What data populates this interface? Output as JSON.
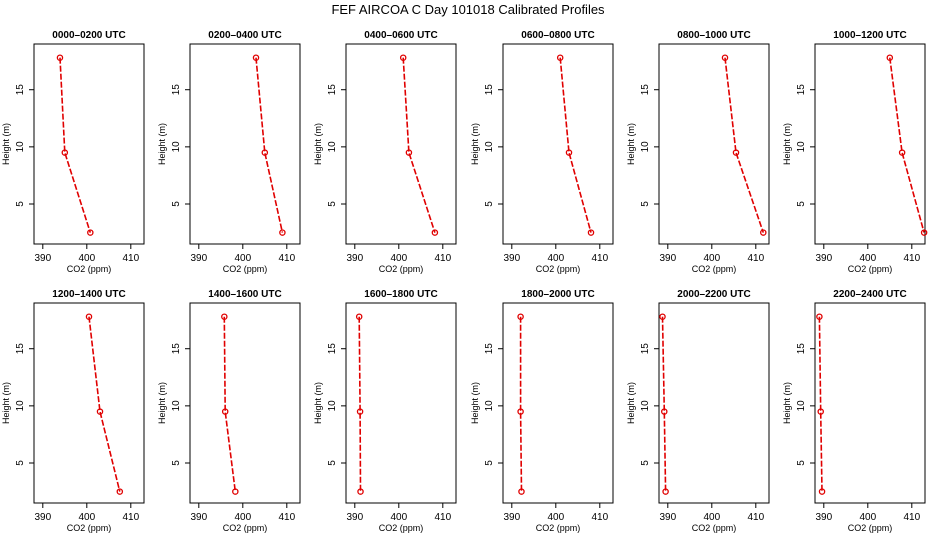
{
  "chart_data": {
    "type": "line",
    "title": "FEF AIRCOA C  Day 101018  Calibrated Profiles",
    "xlabel": "CO2 (ppm)",
    "ylabel": "Height (m)",
    "xlim": [
      388,
      413
    ],
    "ylim": [
      1.5,
      19
    ],
    "x_ticks": [
      390,
      400,
      410
    ],
    "y_ticks": [
      5,
      10,
      15
    ],
    "series_color": "#e00000",
    "panels": [
      {
        "title": "0000–0200 UTC",
        "points": [
          {
            "height": 17.8,
            "co2": 393.9
          },
          {
            "height": 9.5,
            "co2": 395.0
          },
          {
            "height": 2.5,
            "co2": 400.8
          }
        ]
      },
      {
        "title": "0200–0400 UTC",
        "points": [
          {
            "height": 17.8,
            "co2": 403.0
          },
          {
            "height": 9.5,
            "co2": 405.0
          },
          {
            "height": 2.5,
            "co2": 409.0
          }
        ]
      },
      {
        "title": "0400–0600 UTC",
        "points": [
          {
            "height": 17.8,
            "co2": 401.0
          },
          {
            "height": 9.5,
            "co2": 402.3
          },
          {
            "height": 2.5,
            "co2": 408.2
          }
        ]
      },
      {
        "title": "0600–0800 UTC",
        "points": [
          {
            "height": 17.8,
            "co2": 401.0
          },
          {
            "height": 9.5,
            "co2": 403.0
          },
          {
            "height": 2.5,
            "co2": 408.0
          }
        ]
      },
      {
        "title": "0800–1000 UTC",
        "points": [
          {
            "height": 17.8,
            "co2": 403.0
          },
          {
            "height": 9.5,
            "co2": 405.5
          },
          {
            "height": 2.5,
            "co2": 411.7
          }
        ]
      },
      {
        "title": "1000–1200 UTC",
        "points": [
          {
            "height": 17.8,
            "co2": 405.0
          },
          {
            "height": 9.5,
            "co2": 407.8
          },
          {
            "height": 2.5,
            "co2": 412.8
          }
        ]
      },
      {
        "title": "1200–1400 UTC",
        "points": [
          {
            "height": 17.8,
            "co2": 400.5
          },
          {
            "height": 9.5,
            "co2": 403.0
          },
          {
            "height": 2.5,
            "co2": 407.5
          }
        ]
      },
      {
        "title": "1400–1600 UTC",
        "points": [
          {
            "height": 17.8,
            "co2": 395.8
          },
          {
            "height": 9.5,
            "co2": 396.0
          },
          {
            "height": 2.5,
            "co2": 398.3
          }
        ]
      },
      {
        "title": "1600–1800 UTC",
        "points": [
          {
            "height": 17.8,
            "co2": 391.0
          },
          {
            "height": 9.5,
            "co2": 391.2
          },
          {
            "height": 2.5,
            "co2": 391.3
          }
        ]
      },
      {
        "title": "1800–2000 UTC",
        "points": [
          {
            "height": 17.8,
            "co2": 392.0
          },
          {
            "height": 9.5,
            "co2": 392.0
          },
          {
            "height": 2.5,
            "co2": 392.2
          }
        ]
      },
      {
        "title": "2000–2200 UTC",
        "points": [
          {
            "height": 17.8,
            "co2": 388.8
          },
          {
            "height": 9.5,
            "co2": 389.2
          },
          {
            "height": 2.5,
            "co2": 389.5
          }
        ]
      },
      {
        "title": "2200–2400 UTC",
        "points": [
          {
            "height": 17.8,
            "co2": 389.0
          },
          {
            "height": 9.5,
            "co2": 389.3
          },
          {
            "height": 2.5,
            "co2": 389.6
          }
        ]
      }
    ]
  }
}
